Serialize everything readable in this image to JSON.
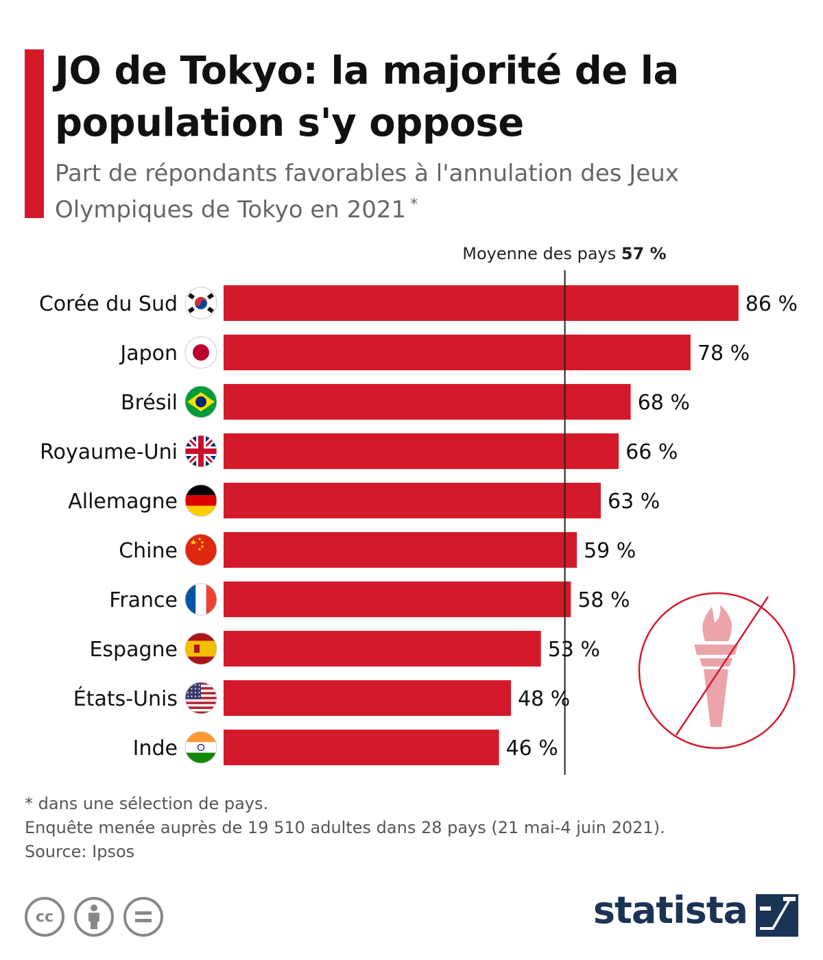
{
  "header": {
    "title": "JO de Tokyo: la majorité de la population s'y oppose",
    "subtitle": "Part de répondants favorables à l'annulation des Jeux Olympiques de Tokyo en 2021",
    "subtitle_mark": "*"
  },
  "average": {
    "label": "Moyenne des pays",
    "value_text": "57 %",
    "value": 57
  },
  "chart_data": {
    "type": "bar",
    "orientation": "horizontal",
    "title": "JO de Tokyo: la majorité de la population s'y oppose",
    "subtitle": "Part de répondants favorables à l'annulation des Jeux Olympiques de Tokyo en 2021",
    "categories": [
      "Corée du Sud",
      "Japon",
      "Brésil",
      "Royaume-Uni",
      "Allemagne",
      "Chine",
      "France",
      "Espagne",
      "États-Unis",
      "Inde"
    ],
    "values": [
      86,
      78,
      68,
      66,
      63,
      59,
      58,
      53,
      48,
      46
    ],
    "value_labels": [
      "86 %",
      "78 %",
      "68 %",
      "66 %",
      "63 %",
      "59 %",
      "58 %",
      "53 %",
      "48 %",
      "46 %"
    ],
    "flags": [
      "south-korea-flag-icon",
      "japan-flag-icon",
      "brazil-flag-icon",
      "uk-flag-icon",
      "germany-flag-icon",
      "china-flag-icon",
      "france-flag-icon",
      "spain-flag-icon",
      "usa-flag-icon",
      "india-flag-icon"
    ],
    "reference_line": {
      "label": "Moyenne des pays",
      "value": 57
    },
    "xlim": [
      0,
      100
    ],
    "grid": false,
    "bar_color": "#d41a2a"
  },
  "footer": {
    "note": "* dans une sélection de pays.",
    "survey": "Enquête menée auprès de 19 510 adultes dans 28 pays (21 mai-4 juin 2021).",
    "source": "Source: Ipsos",
    "license_icons": [
      "cc-icon",
      "attribution-icon",
      "no-derivatives-icon"
    ],
    "brand": "statista"
  },
  "decoration": {
    "icon": "no-torch-icon"
  },
  "colors": {
    "accent": "#d41a2a",
    "brand": "#1b3456",
    "text": "#111111",
    "muted": "#666666"
  }
}
